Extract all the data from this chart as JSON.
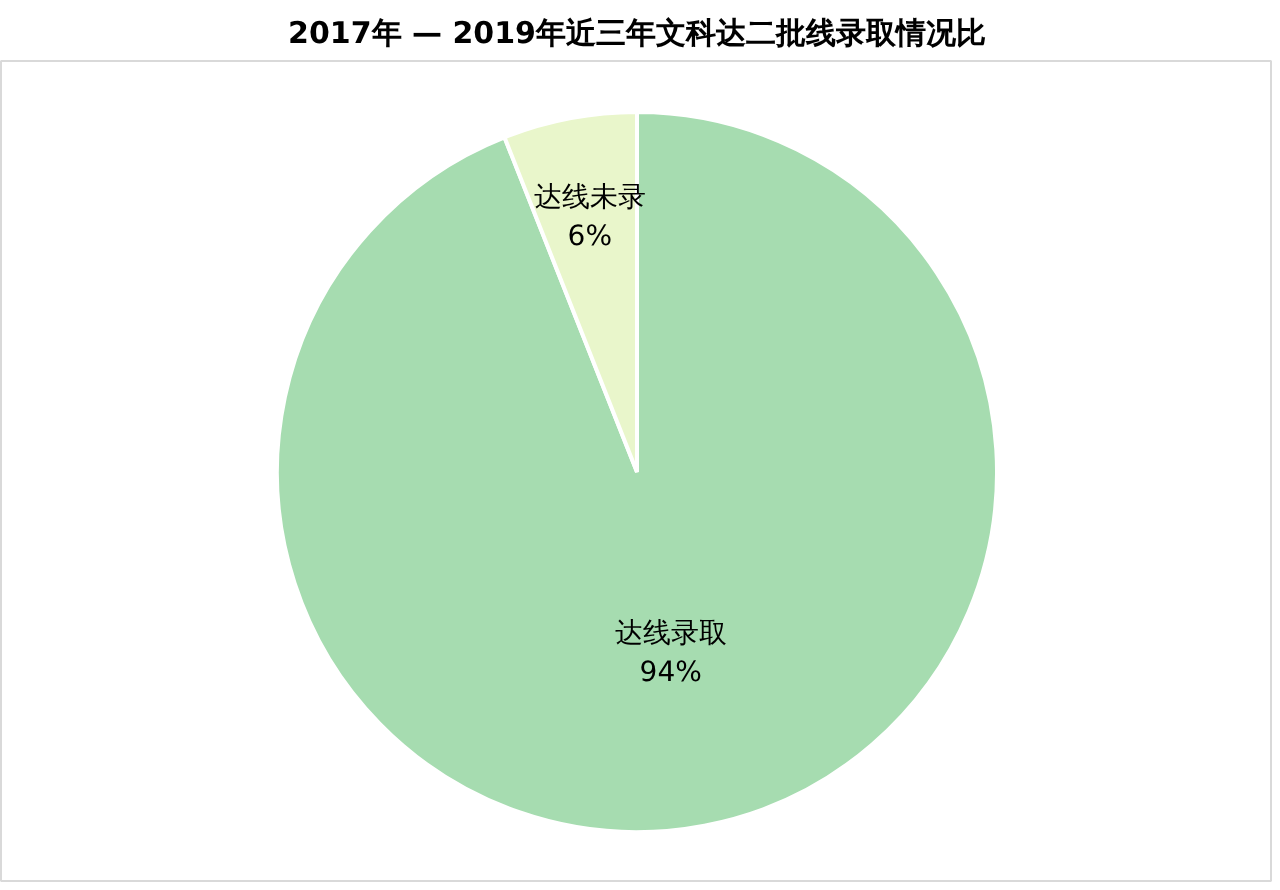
{
  "chart_data": {
    "type": "pie",
    "title": "2017年 — 2019年近三年文科达二批线录取情况比",
    "categories": [
      "达线录取",
      "达线未录"
    ],
    "values": [
      94,
      6
    ],
    "value_labels": [
      "94%",
      "6%"
    ],
    "colors": [
      "#a6dcb0",
      "#e9f6cb"
    ]
  }
}
